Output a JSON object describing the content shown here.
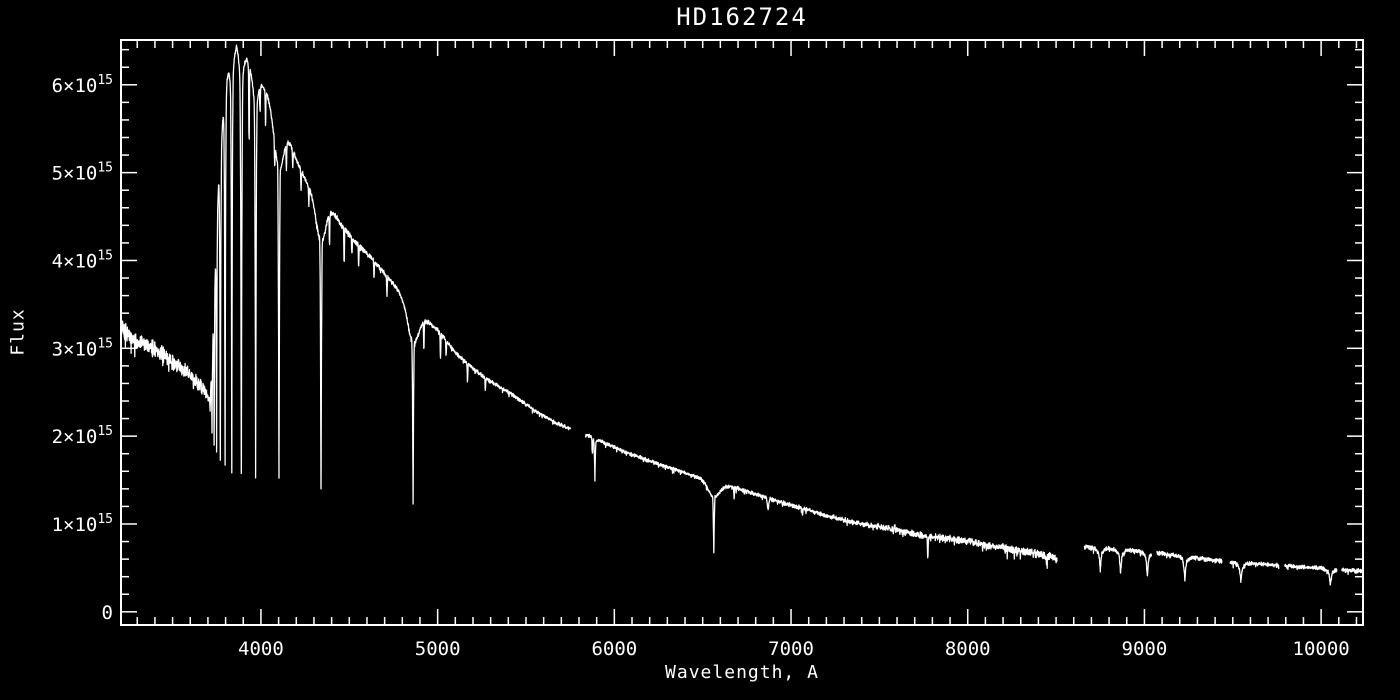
{
  "page": {
    "background_color": "#000000",
    "foreground_color": "#ffffff"
  },
  "chart_data": {
    "type": "line",
    "title": "HD162724",
    "xlabel": "Wavelength, A",
    "ylabel": "Flux",
    "legend": null,
    "grid": false,
    "line_color": "#ffffff",
    "x_range": [
      3208,
      10237
    ],
    "y_range_e15": [
      -0.15,
      6.51
    ],
    "flux_unit": "1e15",
    "x_major_ticks": [
      4000,
      5000,
      6000,
      7000,
      8000,
      9000,
      10000
    ],
    "x_tick_labels": [
      "4000",
      "5000",
      "6000",
      "7000",
      "8000",
      "9000",
      "10000"
    ],
    "x_minor_step": 100,
    "y_major_ticks_e15": [
      0,
      1,
      2,
      3,
      4,
      5,
      6
    ],
    "y_tick_labels": [
      {
        "text": "0",
        "exp": ""
      },
      {
        "text": "1×10",
        "exp": "15"
      },
      {
        "text": "2×10",
        "exp": "15"
      },
      {
        "text": "3×10",
        "exp": "15"
      },
      {
        "text": "4×10",
        "exp": "15"
      },
      {
        "text": "5×10",
        "exp": "15"
      },
      {
        "text": "6×10",
        "exp": "15"
      }
    ],
    "y_minor_step_e15": 0.2,
    "segments": [
      [
        3208,
        5752
      ],
      [
        5838,
        8505
      ],
      [
        8660,
        9042
      ],
      [
        9070,
        9438
      ],
      [
        9483,
        9760
      ],
      [
        9794,
        10088
      ],
      [
        10116,
        10230
      ]
    ],
    "continuum_e15": [
      [
        3208,
        3.22
      ],
      [
        3290,
        3.09
      ],
      [
        3372,
        3.02
      ],
      [
        3450,
        2.92
      ],
      [
        3514,
        2.82
      ],
      [
        3570,
        2.74
      ],
      [
        3627,
        2.64
      ],
      [
        3683,
        2.52
      ],
      [
        3700,
        2.42
      ],
      [
        3712,
        2.5
      ],
      [
        3722,
        2.9
      ],
      [
        3732,
        3.45
      ],
      [
        3742,
        4.05
      ],
      [
        3752,
        4.6
      ],
      [
        3762,
        5.0
      ],
      [
        3775,
        5.4
      ],
      [
        3790,
        5.8
      ],
      [
        3805,
        6.1
      ],
      [
        3822,
        6.15
      ],
      [
        3838,
        6.25
      ],
      [
        3850,
        6.35
      ],
      [
        3862,
        6.45
      ],
      [
        3880,
        6.33
      ],
      [
        3900,
        6.3
      ],
      [
        3921,
        6.28
      ],
      [
        3945,
        6.15
      ],
      [
        3970,
        6.08
      ],
      [
        3995,
        6.02
      ],
      [
        4035,
        5.9
      ],
      [
        4068,
        5.75
      ],
      [
        4102,
        5.6
      ],
      [
        4136,
        5.51
      ],
      [
        4200,
        5.15
      ],
      [
        4261,
        4.88
      ],
      [
        4317,
        4.73
      ],
      [
        4340,
        4.68
      ],
      [
        4380,
        4.65
      ],
      [
        4450,
        4.42
      ],
      [
        4521,
        4.24
      ],
      [
        4580,
        4.12
      ],
      [
        4634,
        4.01
      ],
      [
        4680,
        3.9
      ],
      [
        4730,
        3.78
      ],
      [
        4780,
        3.65
      ],
      [
        4832,
        3.52
      ],
      [
        4870,
        3.42
      ],
      [
        4911,
        3.36
      ],
      [
        5002,
        3.21
      ],
      [
        5100,
        2.95
      ],
      [
        5206,
        2.76
      ],
      [
        5300,
        2.62
      ],
      [
        5400,
        2.5
      ],
      [
        5466,
        2.41
      ],
      [
        5560,
        2.28
      ],
      [
        5650,
        2.17
      ],
      [
        5752,
        2.08
      ],
      [
        5838,
        2.02
      ],
      [
        5950,
        1.92
      ],
      [
        6050,
        1.83
      ],
      [
        6145,
        1.76
      ],
      [
        6250,
        1.68
      ],
      [
        6350,
        1.62
      ],
      [
        6428,
        1.56
      ],
      [
        6563,
        1.49
      ],
      [
        6694,
        1.41
      ],
      [
        6800,
        1.34
      ],
      [
        6937,
        1.25
      ],
      [
        7100,
        1.16
      ],
      [
        7200,
        1.1
      ],
      [
        7350,
        1.02
      ],
      [
        7500,
        0.97
      ],
      [
        7600,
        0.93
      ],
      [
        7750,
        0.87
      ],
      [
        7870,
        0.84
      ],
      [
        8000,
        0.8
      ],
      [
        8100,
        0.76
      ],
      [
        8200,
        0.73
      ],
      [
        8300,
        0.69
      ],
      [
        8400,
        0.66
      ],
      [
        8460,
        0.63
      ],
      [
        8505,
        0.61
      ],
      [
        8660,
        0.74
      ],
      [
        8800,
        0.72
      ],
      [
        8930,
        0.7
      ],
      [
        9060,
        0.675
      ],
      [
        9160,
        0.65
      ],
      [
        9300,
        0.615
      ],
      [
        9400,
        0.585
      ],
      [
        9500,
        0.565
      ],
      [
        9620,
        0.55
      ],
      [
        9750,
        0.53
      ],
      [
        9900,
        0.51
      ],
      [
        10000,
        0.5
      ],
      [
        10100,
        0.48
      ],
      [
        10230,
        0.46
      ]
    ],
    "absorption_lines": [
      {
        "center": 3712,
        "bottom_e15": 2.3,
        "core_A": 2.5,
        "wing_A": 6,
        "wing_depth": 0.03
      },
      {
        "center": 3723,
        "bottom_e15": 2.1,
        "core_A": 2.5,
        "wing_A": 6,
        "wing_depth": 0.03
      },
      {
        "center": 3735,
        "bottom_e15": 1.95,
        "core_A": 2.5,
        "wing_A": 6,
        "wing_depth": 0.03
      },
      {
        "center": 3749,
        "bottom_e15": 1.82,
        "core_A": 2.5,
        "wing_A": 6,
        "wing_depth": 0.03
      },
      {
        "center": 3770,
        "bottom_e15": 1.72,
        "core_A": 3,
        "wing_A": 7,
        "wing_depth": 0.03
      },
      {
        "center": 3797,
        "bottom_e15": 1.66,
        "core_A": 3,
        "wing_A": 7,
        "wing_depth": 0.03
      },
      {
        "center": 3835,
        "bottom_e15": 1.62,
        "core_A": 3,
        "wing_A": 8,
        "wing_depth": 0.04
      },
      {
        "center": 3889,
        "bottom_e15": 1.58,
        "core_A": 3.5,
        "wing_A": 10,
        "wing_depth": 0.05
      },
      {
        "center": 3970,
        "bottom_e15": 1.55,
        "core_A": 3.5,
        "wing_A": 12,
        "wing_depth": 0.06
      },
      {
        "center": 4102,
        "bottom_e15": 1.5,
        "core_A": 4,
        "wing_A": 26,
        "wing_depth": 0.1
      },
      {
        "center": 4340,
        "bottom_e15": 1.4,
        "core_A": 4,
        "wing_A": 28,
        "wing_depth": 0.1
      },
      {
        "center": 4861,
        "bottom_e15": 1.22,
        "core_A": 4,
        "wing_A": 30,
        "wing_depth": 0.11
      },
      {
        "center": 5890,
        "bottom_e15": 1.5,
        "core_A": 3,
        "wing_A": 7,
        "wing_depth": 0.03
      },
      {
        "center": 6563,
        "bottom_e15": 0.67,
        "core_A": 4.5,
        "wing_A": 34,
        "wing_depth": 0.12
      },
      {
        "center": 8750,
        "bottom_e15": 0.48,
        "core_A": 7,
        "wing_A": 16,
        "wing_depth": 0.1
      },
      {
        "center": 8865,
        "bottom_e15": 0.44,
        "core_A": 7,
        "wing_A": 16,
        "wing_depth": 0.1
      },
      {
        "center": 9017,
        "bottom_e15": 0.4,
        "core_A": 7,
        "wing_A": 16,
        "wing_depth": 0.1
      },
      {
        "center": 9229,
        "bottom_e15": 0.37,
        "core_A": 8,
        "wing_A": 18,
        "wing_depth": 0.1
      },
      {
        "center": 9546,
        "bottom_e15": 0.34,
        "core_A": 8,
        "wing_A": 18,
        "wing_depth": 0.1
      },
      {
        "center": 10052,
        "bottom_e15": 0.31,
        "core_A": 8,
        "wing_A": 18,
        "wing_depth": 0.1
      }
    ],
    "minor_lines_e15": [
      {
        "center": 3933,
        "depth": 0.85,
        "core_A": 2.5
      },
      {
        "center": 3995,
        "depth": 0.3,
        "core_A": 2.2
      },
      {
        "center": 4026,
        "depth": 0.4,
        "core_A": 2.2
      },
      {
        "center": 4078,
        "depth": 0.25,
        "core_A": 2.2
      },
      {
        "center": 4144,
        "depth": 0.32,
        "core_A": 2.2
      },
      {
        "center": 4180,
        "depth": 0.2,
        "core_A": 2.2
      },
      {
        "center": 4227,
        "depth": 0.22,
        "core_A": 2.2
      },
      {
        "center": 4271,
        "depth": 0.2,
        "core_A": 2.2
      },
      {
        "center": 4388,
        "depth": 0.35,
        "core_A": 2.2
      },
      {
        "center": 4471,
        "depth": 0.4,
        "core_A": 2.2
      },
      {
        "center": 4515,
        "depth": 0.2,
        "core_A": 2.2
      },
      {
        "center": 4553,
        "depth": 0.25,
        "core_A": 2.2
      },
      {
        "center": 4640,
        "depth": 0.2,
        "core_A": 2.2
      },
      {
        "center": 4713,
        "depth": 0.22,
        "core_A": 2.2
      },
      {
        "center": 4922,
        "depth": 0.33,
        "core_A": 2.2
      },
      {
        "center": 5016,
        "depth": 0.28,
        "core_A": 2.2
      },
      {
        "center": 5048,
        "depth": 0.18,
        "core_A": 2.2
      },
      {
        "center": 5169,
        "depth": 0.22,
        "core_A": 2.2
      },
      {
        "center": 5270,
        "depth": 0.16,
        "core_A": 2.2
      },
      {
        "center": 5876,
        "depth": 0.18,
        "core_A": 2.2
      },
      {
        "center": 6678,
        "depth": 0.12,
        "core_A": 2.2
      },
      {
        "center": 6870,
        "depth": 0.12,
        "core_A": 6
      },
      {
        "center": 7065,
        "depth": 0.08,
        "core_A": 2.2
      },
      {
        "center": 7588,
        "depth": -0.07,
        "core_A": 2
      },
      {
        "center": 7774,
        "depth": 0.22,
        "core_A": 3
      },
      {
        "center": 8446,
        "depth": 0.08,
        "core_A": 2.5
      }
    ],
    "noise_amplitude_e15": [
      [
        3208,
        0.07
      ],
      [
        3500,
        0.065
      ],
      [
        3650,
        0.055
      ],
      [
        3700,
        0.04
      ],
      [
        3730,
        0.025
      ],
      [
        3800,
        0.02
      ],
      [
        4000,
        0.018
      ],
      [
        4400,
        0.02
      ],
      [
        4800,
        0.018
      ],
      [
        5200,
        0.016
      ],
      [
        5600,
        0.015
      ],
      [
        6000,
        0.014
      ],
      [
        6400,
        0.014
      ],
      [
        6800,
        0.015
      ],
      [
        7200,
        0.018
      ],
      [
        7500,
        0.022
      ],
      [
        7800,
        0.027
      ],
      [
        8100,
        0.03
      ],
      [
        8300,
        0.034
      ],
      [
        8505,
        0.038
      ],
      [
        8660,
        0.02
      ],
      [
        8900,
        0.015
      ],
      [
        9100,
        0.018
      ],
      [
        9300,
        0.02
      ],
      [
        9600,
        0.015
      ],
      [
        9900,
        0.015
      ],
      [
        10100,
        0.018
      ],
      [
        10230,
        0.022
      ]
    ],
    "noise_seed": 42
  }
}
